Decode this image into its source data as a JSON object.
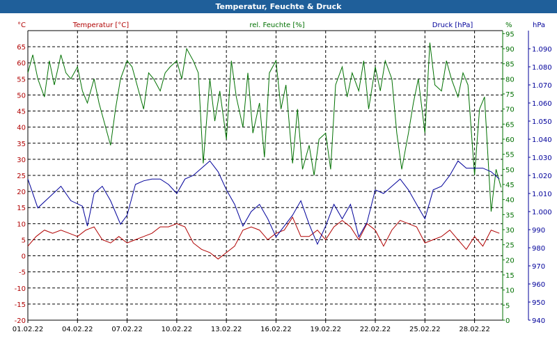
{
  "title": "Temperatur, Feuchte & Druck",
  "chart_data": {
    "type": "line",
    "x_ticks": [
      "01.02.22",
      "04.02.22",
      "07.02.22",
      "10.02.22",
      "13.02.22",
      "16.02.22",
      "19.02.22",
      "22.02.22",
      "25.02.22",
      "28.02.22"
    ],
    "x_range_days": [
      1,
      29.7
    ],
    "grid": true,
    "axes": {
      "temperature": {
        "unit_label": "°C",
        "header": "Temperatur [°C]",
        "range": [
          -20,
          70
        ],
        "ticks": [
          "-20",
          "-15",
          "-10",
          "-5",
          "0",
          "5",
          "10",
          "15",
          "20",
          "25",
          "30",
          "35",
          "40",
          "45",
          "50",
          "55",
          "60",
          "65"
        ],
        "color": "#b00000"
      },
      "humidity": {
        "unit_label": "%",
        "header": "rel. Feuchte [%]",
        "range": [
          0,
          96
        ],
        "ticks": [
          "0",
          "5",
          "10",
          "15",
          "20",
          "25",
          "30",
          "35",
          "40",
          "45",
          "50",
          "55",
          "60",
          "65",
          "70",
          "75",
          "80",
          "85",
          "90",
          "95"
        ],
        "color": "#007000"
      },
      "pressure": {
        "unit_label": "hPa",
        "header": "Druck [hPa]",
        "range": [
          940,
          1100
        ],
        "ticks": [
          "940",
          "950",
          "960",
          "970",
          "980",
          "990",
          "1.000",
          "1.010",
          "1.020",
          "1.030",
          "1.040",
          "1.050",
          "1.060",
          "1.070",
          "1.080",
          "1.090"
        ],
        "color": "#00009a"
      }
    },
    "series": [
      {
        "name": "Temperatur [°C]",
        "axis": "temperature",
        "color": "#b00000",
        "points": [
          [
            1,
            3
          ],
          [
            1.5,
            6
          ],
          [
            2,
            8
          ],
          [
            2.5,
            7
          ],
          [
            3,
            8
          ],
          [
            3.5,
            7
          ],
          [
            4,
            6
          ],
          [
            4.5,
            8
          ],
          [
            5,
            9
          ],
          [
            5.5,
            5
          ],
          [
            6,
            4
          ],
          [
            6.5,
            6
          ],
          [
            7,
            4
          ],
          [
            7.5,
            5
          ],
          [
            8,
            6
          ],
          [
            8.5,
            7
          ],
          [
            9,
            9
          ],
          [
            9.5,
            9
          ],
          [
            10,
            10
          ],
          [
            10.5,
            9
          ],
          [
            11,
            4
          ],
          [
            11.5,
            2
          ],
          [
            12,
            1
          ],
          [
            12.5,
            -1
          ],
          [
            13,
            1
          ],
          [
            13.5,
            3
          ],
          [
            14,
            8
          ],
          [
            14.5,
            9
          ],
          [
            15,
            8
          ],
          [
            15.5,
            5
          ],
          [
            16,
            7
          ],
          [
            16.5,
            8
          ],
          [
            17,
            12
          ],
          [
            17.5,
            6
          ],
          [
            18,
            6
          ],
          [
            18.5,
            8
          ],
          [
            19,
            5
          ],
          [
            19.5,
            9
          ],
          [
            20,
            11
          ],
          [
            20.5,
            9
          ],
          [
            21,
            5
          ],
          [
            21.5,
            10
          ],
          [
            22,
            8
          ],
          [
            22.5,
            3
          ],
          [
            23,
            8
          ],
          [
            23.5,
            11
          ],
          [
            24,
            10
          ],
          [
            24.5,
            9
          ],
          [
            25,
            4
          ],
          [
            25.5,
            5
          ],
          [
            26,
            6
          ],
          [
            26.5,
            8
          ],
          [
            27,
            5
          ],
          [
            27.5,
            2
          ],
          [
            28,
            6
          ],
          [
            28.5,
            3
          ],
          [
            29,
            8
          ],
          [
            29.5,
            7
          ]
        ]
      },
      {
        "name": "rel. Feuchte [%]",
        "axis": "humidity",
        "color": "#007000",
        "points": [
          [
            1,
            82
          ],
          [
            1.3,
            88
          ],
          [
            1.6,
            80
          ],
          [
            2,
            74
          ],
          [
            2.3,
            86
          ],
          [
            2.6,
            78
          ],
          [
            3,
            88
          ],
          [
            3.3,
            82
          ],
          [
            3.6,
            80
          ],
          [
            4,
            84
          ],
          [
            4.3,
            76
          ],
          [
            4.6,
            72
          ],
          [
            5,
            80
          ],
          [
            5.3,
            72
          ],
          [
            5.6,
            66
          ],
          [
            6,
            58
          ],
          [
            6.3,
            70
          ],
          [
            6.6,
            80
          ],
          [
            7,
            86
          ],
          [
            7.3,
            84
          ],
          [
            7.6,
            78
          ],
          [
            8,
            70
          ],
          [
            8.3,
            82
          ],
          [
            8.6,
            80
          ],
          [
            9,
            76
          ],
          [
            9.3,
            82
          ],
          [
            9.6,
            84
          ],
          [
            10,
            86
          ],
          [
            10.3,
            80
          ],
          [
            10.6,
            90
          ],
          [
            11,
            86
          ],
          [
            11.3,
            82
          ],
          [
            11.6,
            52
          ],
          [
            12,
            80
          ],
          [
            12.3,
            66
          ],
          [
            12.6,
            76
          ],
          [
            13,
            60
          ],
          [
            13.3,
            86
          ],
          [
            13.6,
            74
          ],
          [
            14,
            64
          ],
          [
            14.3,
            82
          ],
          [
            14.6,
            62
          ],
          [
            15,
            72
          ],
          [
            15.3,
            54
          ],
          [
            15.6,
            82
          ],
          [
            16,
            86
          ],
          [
            16.3,
            70
          ],
          [
            16.6,
            78
          ],
          [
            17,
            52
          ],
          [
            17.3,
            70
          ],
          [
            17.6,
            50
          ],
          [
            18,
            58
          ],
          [
            18.3,
            48
          ],
          [
            18.6,
            60
          ],
          [
            19,
            62
          ],
          [
            19.3,
            50
          ],
          [
            19.6,
            78
          ],
          [
            20,
            84
          ],
          [
            20.3,
            74
          ],
          [
            20.6,
            82
          ],
          [
            21,
            76
          ],
          [
            21.3,
            86
          ],
          [
            21.6,
            70
          ],
          [
            22,
            84
          ],
          [
            22.3,
            76
          ],
          [
            22.6,
            86
          ],
          [
            23,
            80
          ],
          [
            23.3,
            62
          ],
          [
            23.6,
            50
          ],
          [
            24,
            62
          ],
          [
            24.3,
            72
          ],
          [
            24.6,
            80
          ],
          [
            25,
            62
          ],
          [
            25.3,
            92
          ],
          [
            25.6,
            78
          ],
          [
            26,
            76
          ],
          [
            26.3,
            86
          ],
          [
            26.6,
            80
          ],
          [
            27,
            74
          ],
          [
            27.3,
            82
          ],
          [
            27.6,
            78
          ],
          [
            28,
            48
          ],
          [
            28.3,
            70
          ],
          [
            28.6,
            74
          ],
          [
            29,
            36
          ],
          [
            29.3,
            50
          ],
          [
            29.6,
            44
          ]
        ]
      },
      {
        "name": "Druck [hPa]",
        "axis": "pressure",
        "color": "#00009a",
        "points": [
          [
            1,
            1018
          ],
          [
            1.6,
            1002
          ],
          [
            2.3,
            1008
          ],
          [
            3,
            1014
          ],
          [
            3.6,
            1006
          ],
          [
            4.3,
            1003
          ],
          [
            4.6,
            992
          ],
          [
            5,
            1010
          ],
          [
            5.5,
            1014
          ],
          [
            6,
            1006
          ],
          [
            6.6,
            993
          ],
          [
            7,
            998
          ],
          [
            7.5,
            1015
          ],
          [
            8,
            1017
          ],
          [
            8.5,
            1018
          ],
          [
            9,
            1018
          ],
          [
            9.5,
            1015
          ],
          [
            10,
            1010
          ],
          [
            10.5,
            1018
          ],
          [
            11,
            1020
          ],
          [
            11.5,
            1024
          ],
          [
            12,
            1028
          ],
          [
            12.5,
            1022
          ],
          [
            13,
            1012
          ],
          [
            13.5,
            1004
          ],
          [
            14,
            992
          ],
          [
            14.5,
            1000
          ],
          [
            15,
            1004
          ],
          [
            15.5,
            996
          ],
          [
            16,
            986
          ],
          [
            16.5,
            992
          ],
          [
            17,
            998
          ],
          [
            17.5,
            1006
          ],
          [
            18,
            993
          ],
          [
            18.5,
            982
          ],
          [
            19,
            992
          ],
          [
            19.5,
            1004
          ],
          [
            20,
            996
          ],
          [
            20.5,
            1004
          ],
          [
            21,
            986
          ],
          [
            21.5,
            994
          ],
          [
            22,
            1012
          ],
          [
            22.5,
            1010
          ],
          [
            23,
            1014
          ],
          [
            23.5,
            1018
          ],
          [
            24,
            1012
          ],
          [
            24.5,
            1004
          ],
          [
            25,
            996
          ],
          [
            25.5,
            1012
          ],
          [
            26,
            1014
          ],
          [
            26.5,
            1020
          ],
          [
            27,
            1028
          ],
          [
            27.5,
            1024
          ],
          [
            28,
            1024
          ],
          [
            28.5,
            1024
          ],
          [
            29,
            1022
          ],
          [
            29.5,
            1018
          ]
        ]
      }
    ]
  }
}
